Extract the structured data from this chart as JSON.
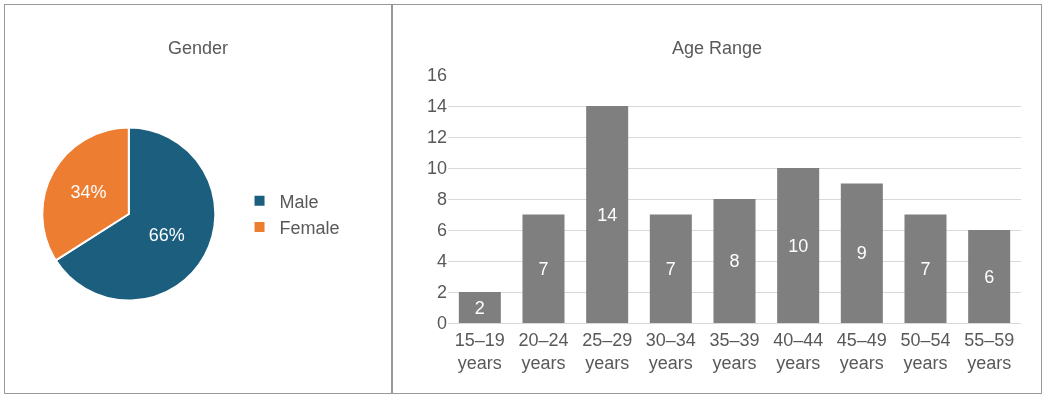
{
  "chart_data": [
    {
      "type": "pie",
      "title": "Gender",
      "categories": [
        "Male",
        "Female"
      ],
      "values": [
        66,
        34
      ],
      "colors": [
        "#1b5e7e",
        "#ed7d31"
      ],
      "value_labels": [
        "66%",
        "34%"
      ],
      "legend": "right"
    },
    {
      "type": "bar",
      "title": "Age Range",
      "categories": [
        "15–19 years",
        "20–24 years",
        "25–29 years",
        "30–34 years",
        "35–39 years",
        "40–44 years",
        "45–49 years",
        "50–54 years",
        "55–59 years"
      ],
      "values": [
        2,
        7,
        14,
        7,
        8,
        10,
        9,
        7,
        6
      ],
      "color": "#7f7f7f",
      "ylim": [
        0,
        16
      ],
      "yticks": [
        0,
        2,
        4,
        6,
        8,
        10,
        12,
        14,
        16
      ],
      "grid": "y",
      "data_labels": true,
      "legend": false
    }
  ]
}
